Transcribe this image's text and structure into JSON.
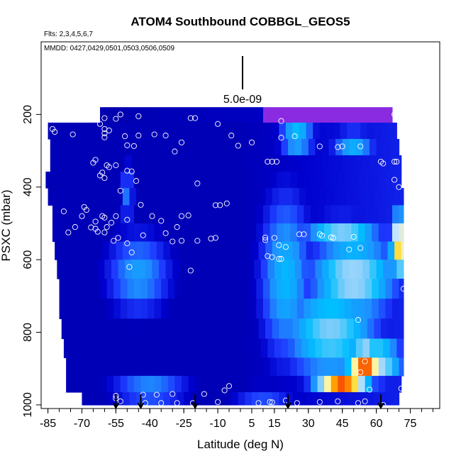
{
  "chart_data": {
    "type": "heatmap",
    "title": "ATOM4 Southbound COBBGL_GEOS5",
    "annotations": {
      "flights": "Flts: 2,3,4,5,6,7",
      "dates": "MMDD: 0427,0429,0501,0503,0506,0509",
      "scale": "5.0e-09"
    },
    "xlabel": "Latitude (deg N)",
    "ylabel": "PSXC (mbar)",
    "xlim": [
      -88,
      88
    ],
    "ylim": [
      1010,
      0
    ],
    "x_ticks": [
      -85,
      -70,
      -55,
      -40,
      -25,
      -10,
      5,
      15,
      30,
      45,
      60,
      75
    ],
    "x_tick_labels": [
      "-85",
      "-70",
      "-55",
      "-40",
      "-25",
      "-10",
      "5",
      "15",
      "30",
      "45",
      "60",
      "75"
    ],
    "y_ticks": [
      200,
      400,
      600,
      800,
      1000
    ],
    "y_tick_labels": [
      "200",
      "400",
      "600",
      "800",
      "1000"
    ],
    "grid": false,
    "legend": "none",
    "colormap": [
      "#00008b",
      "#0000cd",
      "#1e3cff",
      "#1e90ff",
      "#00bfff",
      "#87cefa",
      "#c8e6ff",
      "#fff5a0",
      "#ffcc00",
      "#ff8000",
      "#e60000",
      "#8b0000"
    ],
    "top_band_color": "#8a2be2",
    "pressure_rows": [
      {
        "p": 200,
        "x0": -62,
        "x1": 67
      },
      {
        "p": 245,
        "x0": -85,
        "x1": 69
      },
      {
        "p": 290,
        "x0": -84,
        "x1": 70
      },
      {
        "p": 335,
        "x0": -84,
        "x1": 71
      },
      {
        "p": 380,
        "x0": -86,
        "x1": 71
      },
      {
        "p": 425,
        "x0": -85,
        "x1": 72
      },
      {
        "p": 475,
        "x0": -83,
        "x1": 72
      },
      {
        "p": 525,
        "x0": -83,
        "x1": 72
      },
      {
        "p": 575,
        "x0": -82,
        "x1": 72
      },
      {
        "p": 625,
        "x0": -81,
        "x1": 72
      },
      {
        "p": 680,
        "x0": -80,
        "x1": 72
      },
      {
        "p": 735,
        "x0": -80,
        "x1": 72
      },
      {
        "p": 790,
        "x0": -79,
        "x1": 72
      },
      {
        "p": 845,
        "x0": -78,
        "x1": 72
      },
      {
        "p": 895,
        "x0": -77,
        "x1": 72
      },
      {
        "p": 945,
        "x0": -77,
        "x1": 71
      },
      {
        "p": 985,
        "x0": -70,
        "x1": 70
      }
    ],
    "hotspots": [
      {
        "lat": 55,
        "p": 880,
        "dlat": 8,
        "dp": 40,
        "v": 1.0
      },
      {
        "lat": 45,
        "p": 945,
        "dlat": 12,
        "dp": 25,
        "v": 0.85
      },
      {
        "lat": 70,
        "p": 560,
        "dlat": 4,
        "dp": 90,
        "v": 0.72
      },
      {
        "lat": 60,
        "p": 880,
        "dlat": 12,
        "dp": 60,
        "v": 0.55
      },
      {
        "lat": 45,
        "p": 530,
        "dlat": 18,
        "dp": 50,
        "v": 0.45
      },
      {
        "lat": 50,
        "p": 650,
        "dlat": 20,
        "dp": 120,
        "v": 0.5
      },
      {
        "lat": 40,
        "p": 800,
        "dlat": 22,
        "dp": 140,
        "v": 0.45
      },
      {
        "lat": 25,
        "p": 260,
        "dlat": 8,
        "dp": 60,
        "v": 0.38
      },
      {
        "lat": 50,
        "p": 280,
        "dlat": 10,
        "dp": 40,
        "v": 0.35
      },
      {
        "lat": 20,
        "p": 650,
        "dlat": 12,
        "dp": 250,
        "v": 0.35
      },
      {
        "lat": -45,
        "p": 640,
        "dlat": 15,
        "dp": 120,
        "v": 0.3
      },
      {
        "lat": -50,
        "p": 420,
        "dlat": 3,
        "dp": 90,
        "v": 0.25
      },
      {
        "lat": -40,
        "p": 960,
        "dlat": 18,
        "dp": 40,
        "v": 0.3
      },
      {
        "lat": 10,
        "p": 975,
        "dlat": 15,
        "dp": 30,
        "v": 0.22
      }
    ],
    "points": [
      [
        -53,
        200
      ],
      [
        -45,
        205
      ],
      [
        -60,
        210
      ],
      [
        -55,
        212
      ],
      [
        -62,
        226
      ],
      [
        -60,
        240
      ],
      [
        -58,
        244
      ],
      [
        -83,
        240
      ],
      [
        -82,
        248
      ],
      [
        -60,
        252
      ],
      [
        -74,
        255
      ],
      [
        -60,
        263
      ],
      [
        -51,
        260
      ],
      [
        -45,
        258
      ],
      [
        -38,
        255
      ],
      [
        -33,
        258
      ],
      [
        -22,
        210
      ],
      [
        -20,
        210
      ],
      [
        -10,
        226
      ],
      [
        18,
        218
      ],
      [
        -4,
        258
      ],
      [
        -1,
        286
      ],
      [
        5,
        277
      ],
      [
        18,
        264
      ],
      [
        24,
        260
      ],
      [
        35,
        288
      ],
      [
        45,
        288
      ],
      [
        53,
        288
      ],
      [
        43,
        290
      ],
      [
        16,
        330
      ],
      [
        12,
        330
      ],
      [
        14,
        330
      ],
      [
        -50,
        285
      ],
      [
        -47,
        287
      ],
      [
        -26,
        277
      ],
      [
        -29,
        302
      ],
      [
        -50,
        355
      ],
      [
        -48,
        357
      ],
      [
        -64,
        325
      ],
      [
        -65,
        333
      ],
      [
        -59,
        340
      ],
      [
        -58,
        345
      ],
      [
        -55,
        340
      ],
      [
        -61,
        360
      ],
      [
        -62,
        368
      ],
      [
        -60,
        375
      ],
      [
        -53,
        410
      ],
      [
        -46,
        383
      ],
      [
        -44,
        449
      ],
      [
        -19,
        390
      ],
      [
        -11,
        450
      ],
      [
        -9,
        450
      ],
      [
        -6,
        445
      ],
      [
        -69,
        455
      ],
      [
        -68,
        463
      ],
      [
        -70,
        480
      ],
      [
        -61,
        480
      ],
      [
        -60,
        484
      ],
      [
        -64,
        495
      ],
      [
        -55,
        480
      ],
      [
        -50,
        490
      ],
      [
        -39,
        480
      ],
      [
        -35,
        493
      ],
      [
        -26,
        480
      ],
      [
        -23,
        478
      ],
      [
        -78,
        467
      ],
      [
        -76,
        525
      ],
      [
        -73,
        510
      ],
      [
        -66,
        511
      ],
      [
        -64,
        515
      ],
      [
        -63,
        523
      ],
      [
        -57,
        498
      ],
      [
        -59,
        510
      ],
      [
        -60,
        525
      ],
      [
        -56,
        548
      ],
      [
        -54,
        540
      ],
      [
        -50,
        555
      ],
      [
        -49,
        620
      ],
      [
        -48,
        580
      ],
      [
        -43,
        533
      ],
      [
        -28,
        510
      ],
      [
        -33,
        527
      ],
      [
        -30,
        550
      ],
      [
        -26,
        548
      ],
      [
        -19,
        548
      ],
      [
        -13,
        542
      ],
      [
        -22,
        630
      ],
      [
        -11,
        540
      ],
      [
        11,
        539
      ],
      [
        11,
        546
      ],
      [
        15,
        540
      ],
      [
        17,
        560
      ],
      [
        20,
        565
      ],
      [
        12,
        590
      ],
      [
        14,
        593
      ],
      [
        18,
        598
      ],
      [
        17,
        598
      ],
      [
        35,
        530
      ],
      [
        36,
        534
      ],
      [
        26,
        530
      ],
      [
        28,
        530
      ],
      [
        40,
        538
      ],
      [
        41,
        540
      ],
      [
        50,
        537
      ],
      [
        53,
        568
      ],
      [
        48,
        572
      ],
      [
        52,
        766
      ],
      [
        55,
        880
      ],
      [
        53,
        910
      ],
      [
        57,
        958
      ],
      [
        -5,
        948
      ],
      [
        -7,
        960
      ],
      [
        -16,
        970
      ],
      [
        -30,
        970
      ],
      [
        -37,
        972
      ],
      [
        -43,
        972
      ],
      [
        -55,
        975
      ],
      [
        -55,
        982
      ],
      [
        -53,
        990
      ],
      [
        -42,
        995
      ],
      [
        -35,
        995
      ],
      [
        -28,
        995
      ],
      [
        -21,
        995
      ],
      [
        -10,
        992
      ],
      [
        8,
        995
      ],
      [
        13,
        992
      ],
      [
        14,
        993
      ],
      [
        20,
        988
      ],
      [
        25,
        995
      ],
      [
        35,
        992
      ],
      [
        43,
        990
      ],
      [
        52,
        995
      ],
      [
        55,
        990
      ],
      [
        63,
        1000
      ],
      [
        68,
        200
      ],
      [
        70,
        200
      ],
      [
        69,
        330
      ],
      [
        62,
        330
      ],
      [
        63,
        335
      ],
      [
        68,
        330
      ],
      [
        68,
        380
      ],
      [
        70,
        400
      ],
      [
        71,
        955
      ],
      [
        72,
        680
      ]
    ],
    "arrows": [
      -55,
      -44,
      -20,
      21,
      62
    ]
  }
}
